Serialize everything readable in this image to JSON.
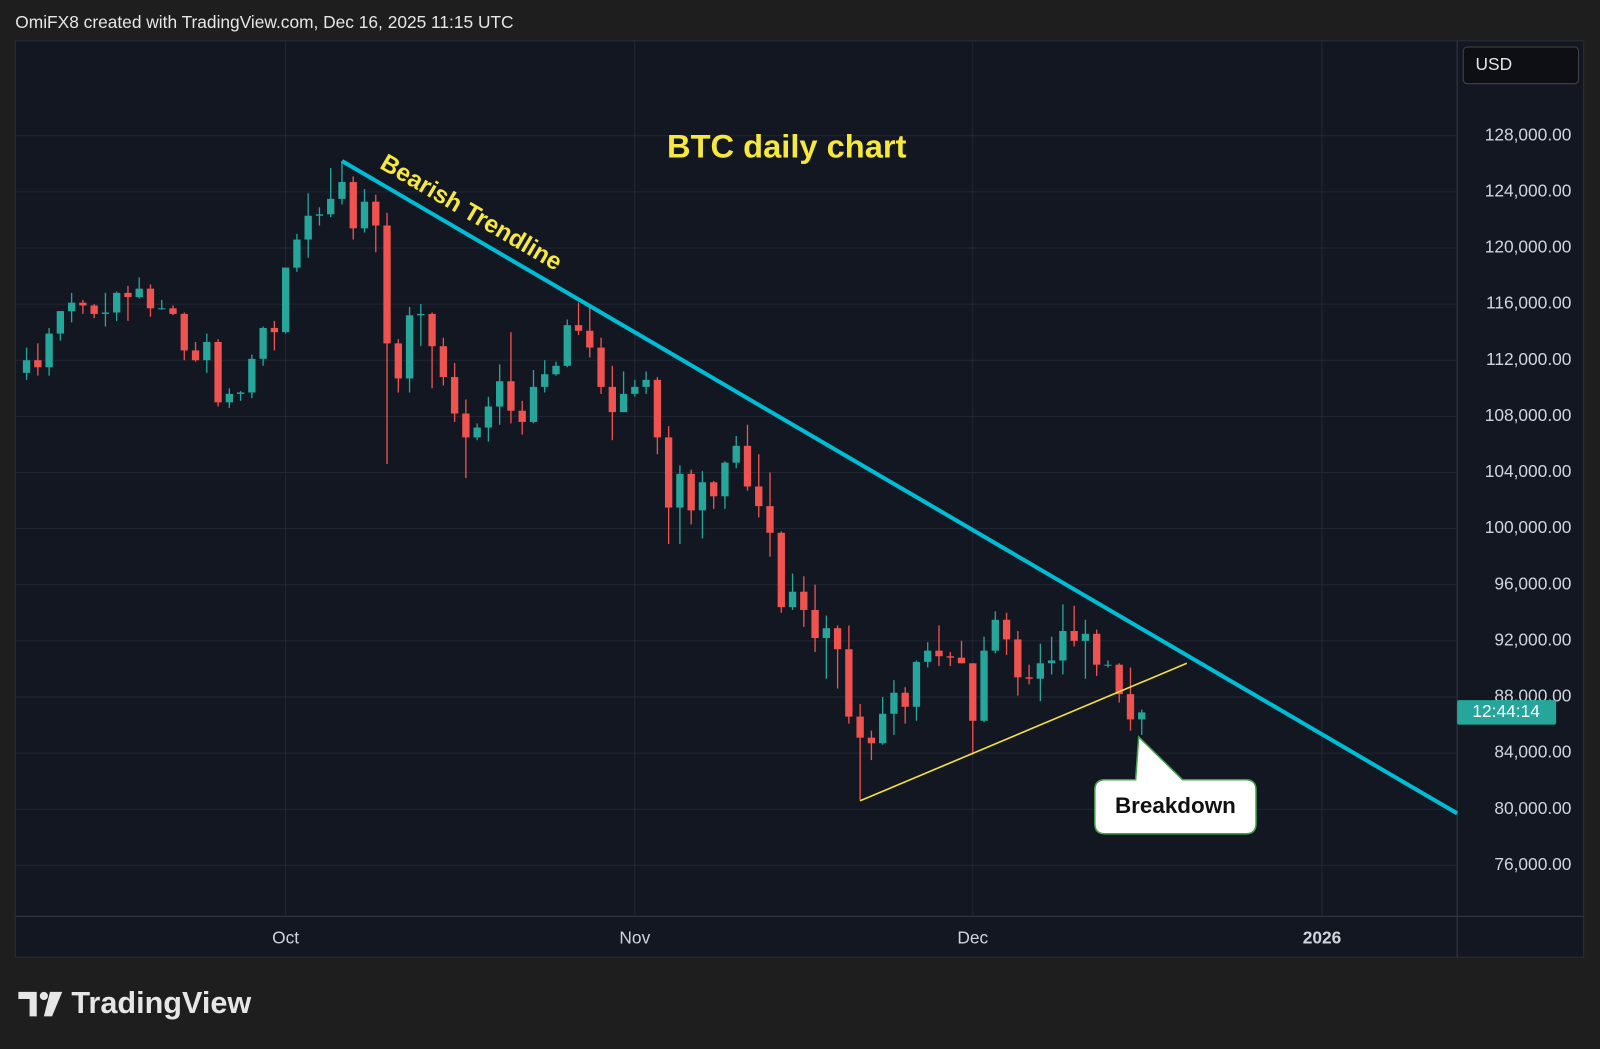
{
  "chart_data": {
    "type": "candlestick",
    "title": "BTC daily chart",
    "header": "OmiFX8 created with TradingView.com, Dec 16, 2025 11:15 UTC",
    "currency": "USD",
    "countdown": "12:44:14",
    "brand": "TradingView",
    "up_color": "#26a69a",
    "down_color": "#ef5350",
    "grid": true,
    "x": [
      "2025-09-08",
      "2025-09-09",
      "2025-09-10",
      "2025-09-11",
      "2025-09-12",
      "2025-09-13",
      "2025-09-14",
      "2025-09-15",
      "2025-09-16",
      "2025-09-17",
      "2025-09-18",
      "2025-09-19",
      "2025-09-20",
      "2025-09-21",
      "2025-09-22",
      "2025-09-23",
      "2025-09-24",
      "2025-09-25",
      "2025-09-26",
      "2025-09-27",
      "2025-09-28",
      "2025-09-29",
      "2025-09-30",
      "2025-10-01",
      "2025-10-02",
      "2025-10-03",
      "2025-10-04",
      "2025-10-05",
      "2025-10-06",
      "2025-10-07",
      "2025-10-08",
      "2025-10-09",
      "2025-10-10",
      "2025-10-11",
      "2025-10-12",
      "2025-10-13",
      "2025-10-14",
      "2025-10-15",
      "2025-10-16",
      "2025-10-17",
      "2025-10-18",
      "2025-10-19",
      "2025-10-20",
      "2025-10-21",
      "2025-10-22",
      "2025-10-23",
      "2025-10-24",
      "2025-10-25",
      "2025-10-26",
      "2025-10-27",
      "2025-10-28",
      "2025-10-29",
      "2025-10-30",
      "2025-10-31",
      "2025-11-01",
      "2025-11-02",
      "2025-11-03",
      "2025-11-04",
      "2025-11-05",
      "2025-11-06",
      "2025-11-07",
      "2025-11-08",
      "2025-11-09",
      "2025-11-10",
      "2025-11-11",
      "2025-11-12",
      "2025-11-13",
      "2025-11-14",
      "2025-11-15",
      "2025-11-16",
      "2025-11-17",
      "2025-11-18",
      "2025-11-19",
      "2025-11-20",
      "2025-11-21",
      "2025-11-22",
      "2025-11-23",
      "2025-11-24",
      "2025-11-25",
      "2025-11-26",
      "2025-11-27",
      "2025-11-28",
      "2025-11-29",
      "2025-11-30",
      "2025-12-01",
      "2025-12-02",
      "2025-12-03",
      "2025-12-04",
      "2025-12-05",
      "2025-12-06",
      "2025-12-07",
      "2025-12-08",
      "2025-12-09",
      "2025-12-10",
      "2025-12-11",
      "2025-12-12",
      "2025-12-13",
      "2025-12-14",
      "2025-12-15",
      "2025-12-16"
    ],
    "open": [
      111100,
      112000,
      111500,
      113900,
      115500,
      116100,
      115900,
      115300,
      115400,
      116800,
      116500,
      117100,
      115700,
      115700,
      115300,
      112700,
      112000,
      113300,
      109000,
      109600,
      109700,
      112100,
      114300,
      114000,
      118600,
      120600,
      122300,
      122400,
      123500,
      124700,
      121400,
      123300,
      121600,
      113200,
      110700,
      115200,
      115300,
      113000,
      110800,
      108200,
      106500,
      107200,
      108700,
      110500,
      108400,
      107600,
      110100,
      111000,
      111600,
      114500,
      114100,
      112900,
      110100,
      108300,
      109600,
      110100,
      110600,
      106500,
      101500,
      103900,
      101300,
      103300,
      102300,
      104700,
      105900,
      103000,
      101600,
      99700,
      94400,
      95500,
      94200,
      92200,
      92900,
      91400,
      86600,
      85100,
      84700,
      86800,
      88300,
      87300,
      90500,
      91300,
      90900,
      90800,
      90400,
      86300,
      91300,
      93500,
      92100,
      89400,
      89300,
      90400,
      90600,
      92700,
      92000,
      92500,
      90300,
      90300,
      88200,
      86400
    ],
    "high": [
      112900,
      113200,
      114300,
      115500,
      116800,
      116300,
      116000,
      116800,
      116900,
      117300,
      117900,
      117400,
      116300,
      115900,
      115400,
      113300,
      113900,
      113500,
      110000,
      109800,
      112400,
      114400,
      114800,
      118600,
      121000,
      123900,
      122900,
      125700,
      126200,
      125100,
      124200,
      123800,
      122500,
      113500,
      115800,
      116000,
      115400,
      113600,
      111800,
      109200,
      107500,
      109400,
      111700,
      114000,
      109100,
      111300,
      112000,
      111900,
      114900,
      116100,
      116000,
      113600,
      111600,
      111200,
      110600,
      111200,
      110800,
      107300,
      104500,
      104200,
      104100,
      103400,
      104800,
      106600,
      107400,
      105300,
      104000,
      99800,
      96800,
      96600,
      96000,
      93800,
      93100,
      93100,
      87500,
      85600,
      88000,
      89200,
      88700,
      90600,
      91900,
      93100,
      91200,
      92000,
      90400,
      92300,
      94100,
      94000,
      92700,
      90300,
      91800,
      92300,
      94600,
      94500,
      93500,
      92800,
      90600,
      90400,
      90100,
      87100
    ],
    "low": [
      110600,
      110900,
      110900,
      113400,
      114700,
      115300,
      115000,
      114400,
      114800,
      114800,
      116400,
      115100,
      115600,
      115200,
      112000,
      111900,
      111100,
      108700,
      108600,
      109100,
      109300,
      111600,
      112700,
      113900,
      118300,
      119300,
      121600,
      122200,
      123100,
      120600,
      121100,
      119700,
      104600,
      109700,
      109700,
      113000,
      110000,
      110200,
      107600,
      103600,
      106300,
      106200,
      107400,
      107500,
      106700,
      107500,
      109700,
      110900,
      111500,
      113800,
      112200,
      109600,
      106300,
      108300,
      109400,
      109600,
      105300,
      98900,
      98900,
      100300,
      99300,
      101400,
      101400,
      104300,
      102700,
      100800,
      98000,
      94000,
      94200,
      93000,
      91200,
      89300,
      88600,
      86100,
      80600,
      83500,
      84600,
      85300,
      86100,
      86300,
      90100,
      90200,
      90200,
      90400,
      83900,
      86200,
      91100,
      91000,
      88100,
      88900,
      87700,
      89600,
      89600,
      91600,
      89300,
      89500,
      90100,
      87600,
      85600,
      85300
    ],
    "close": [
      112000,
      111500,
      113900,
      115500,
      116100,
      115900,
      115300,
      115400,
      116800,
      116500,
      117100,
      115700,
      115700,
      115300,
      112700,
      112000,
      113300,
      109000,
      109600,
      109700,
      112100,
      114300,
      114000,
      118600,
      120600,
      122300,
      122400,
      123500,
      124700,
      121400,
      123300,
      121600,
      113200,
      110700,
      115200,
      115300,
      113000,
      110800,
      108200,
      106500,
      107200,
      108700,
      110500,
      108400,
      107600,
      110100,
      111000,
      111600,
      114500,
      114100,
      112900,
      110100,
      108300,
      109600,
      110100,
      110600,
      106500,
      101500,
      103900,
      101300,
      103300,
      102300,
      104700,
      105900,
      103000,
      101600,
      99700,
      94400,
      95500,
      94200,
      92200,
      92900,
      91400,
      86600,
      85100,
      84700,
      86800,
      88300,
      87300,
      90500,
      91300,
      90900,
      90800,
      90400,
      86300,
      91300,
      93500,
      92100,
      89400,
      89300,
      90400,
      90600,
      92700,
      92000,
      92500,
      90300,
      90300,
      88200,
      86400,
      86900
    ],
    "xlim": [
      "2025-09-07",
      "2026-01-13"
    ],
    "xticks": [
      {
        "value": "2025-10-01",
        "label": "Oct"
      },
      {
        "value": "2025-11-01",
        "label": "Nov"
      },
      {
        "value": "2025-12-01",
        "label": "Dec"
      },
      {
        "value": "2026-01-01",
        "label": "2026"
      }
    ],
    "ylim": [
      72364,
      134764
    ],
    "yticks": [
      {
        "value": 76000,
        "label": "76,000.00"
      },
      {
        "value": 80000,
        "label": "80,000.00"
      },
      {
        "value": 84000,
        "label": "84,000.00"
      },
      {
        "value": 88000,
        "label": "88,000.00"
      },
      {
        "value": 92000,
        "label": "92,000.00"
      },
      {
        "value": 96000,
        "label": "96,000.00"
      },
      {
        "value": 100000,
        "label": "100,000.00"
      },
      {
        "value": 104000,
        "label": "104,000.00"
      },
      {
        "value": 108000,
        "label": "108,000.00"
      },
      {
        "value": 112000,
        "label": "112,000.00"
      },
      {
        "value": 116000,
        "label": "116,000.00"
      },
      {
        "value": 120000,
        "label": "120,000.00"
      },
      {
        "value": 124000,
        "label": "124,000.00"
      },
      {
        "value": 128000,
        "label": "128,000.00"
      }
    ],
    "trendlines": [
      {
        "label": "Bearish Trendline",
        "color": "#00bcd4",
        "x": [
          "2025-10-06",
          "2026-01-13"
        ],
        "y": [
          126200,
          79700
        ]
      },
      {
        "color": "#f5e13b",
        "x": [
          "2025-11-21",
          "2025-12-20"
        ],
        "y": [
          80600,
          90400
        ]
      }
    ],
    "callout": "Breakdown"
  }
}
